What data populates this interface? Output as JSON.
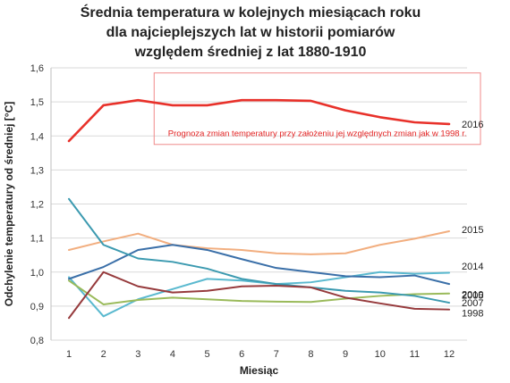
{
  "chart_data": {
    "type": "line",
    "title": [
      "Średnia temperatura w kolejnych miesiącach roku",
      "dla najcieplejszych lat w historii pomiarów",
      "względem średniej z lat 1880-1910"
    ],
    "xlabel": "Miesiąc",
    "ylabel": "Odchylenie temperatury od średniej [°C]",
    "x": [
      1,
      2,
      3,
      4,
      5,
      6,
      7,
      8,
      9,
      10,
      11,
      12
    ],
    "ylim": [
      0.8,
      1.6
    ],
    "yticks": [
      "0,8",
      "0,9",
      "1,0",
      "1,1",
      "1,2",
      "1,3",
      "1,4",
      "1,5",
      "1,6"
    ],
    "grid": true,
    "legend": "inline-right",
    "annotation": "Prognoza zmian temperatury przy założeniu jej względnych zmian jak w 1998  r.",
    "series": [
      {
        "name": "2016",
        "color": "#e8312a",
        "values": [
          1.385,
          1.49,
          1.505,
          1.49,
          1.49,
          1.505,
          1.505,
          1.503,
          1.475,
          1.455,
          1.44,
          1.435
        ]
      },
      {
        "name": "2015",
        "color": "#f2ae7f",
        "values": [
          1.065,
          1.09,
          1.113,
          1.08,
          1.07,
          1.065,
          1.055,
          1.052,
          1.055,
          1.08,
          1.098,
          1.12
        ]
      },
      {
        "name": "2014",
        "color": "#5ab9cf",
        "values": [
          0.985,
          0.87,
          0.92,
          0.95,
          0.98,
          0.975,
          0.965,
          0.97,
          0.985,
          1.0,
          0.995,
          0.998
        ]
      },
      {
        "name": "2010",
        "color": "#3a6fa8",
        "values": [
          0.98,
          1.015,
          1.065,
          1.08,
          1.065,
          1.038,
          1.012,
          1.0,
          0.988,
          0.985,
          0.99,
          0.965
        ]
      },
      {
        "name": "2005",
        "color": "#9aba5a",
        "values": [
          0.975,
          0.905,
          0.918,
          0.925,
          0.92,
          0.915,
          0.913,
          0.912,
          0.922,
          0.93,
          0.935,
          0.937
        ]
      },
      {
        "name": "2007",
        "color": "#3c9ab0",
        "values": [
          1.215,
          1.08,
          1.04,
          1.03,
          1.01,
          0.98,
          0.965,
          0.955,
          0.945,
          0.94,
          0.93,
          0.91
        ]
      },
      {
        "name": "1998",
        "color": "#963a3c",
        "values": [
          0.865,
          1.0,
          0.958,
          0.94,
          0.945,
          0.958,
          0.96,
          0.955,
          0.925,
          0.908,
          0.892,
          0.89
        ]
      }
    ]
  }
}
